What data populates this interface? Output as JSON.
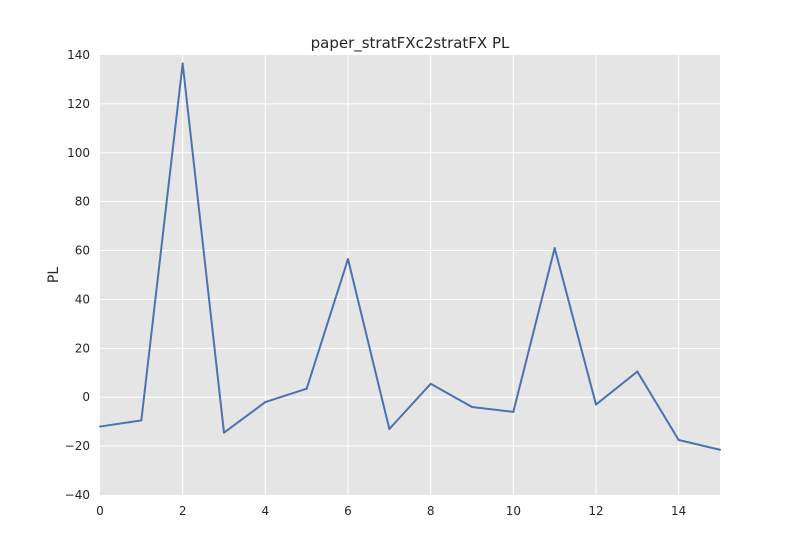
{
  "chart_data": {
    "type": "line",
    "title": "paper_stratFXc2stratFX PL",
    "xlabel": "",
    "ylabel": "PL",
    "xlim": [
      0,
      15
    ],
    "ylim": [
      -40,
      140
    ],
    "grid": true,
    "x_ticks": [
      "0",
      "2",
      "4",
      "6",
      "8",
      "10",
      "12",
      "14"
    ],
    "y_ticks": [
      "−40",
      "−20",
      "0",
      "20",
      "40",
      "60",
      "80",
      "100",
      "120",
      "140"
    ],
    "series": [
      {
        "color": "#4c72b0",
        "x": [
          0,
          1,
          2,
          3,
          4,
          5,
          6,
          7,
          8,
          9,
          10,
          11,
          12,
          13,
          14,
          15
        ],
        "y": [
          -12,
          -9.5,
          136.5,
          -14.5,
          -2,
          3.5,
          56.5,
          -13,
          5.5,
          -4,
          -6,
          61,
          -3,
          10.5,
          -17.5,
          -21.5
        ]
      }
    ],
    "colors": {
      "plot_background": "#e5e5e5",
      "grid": "#ffffff",
      "line": "#4c72b0"
    }
  }
}
